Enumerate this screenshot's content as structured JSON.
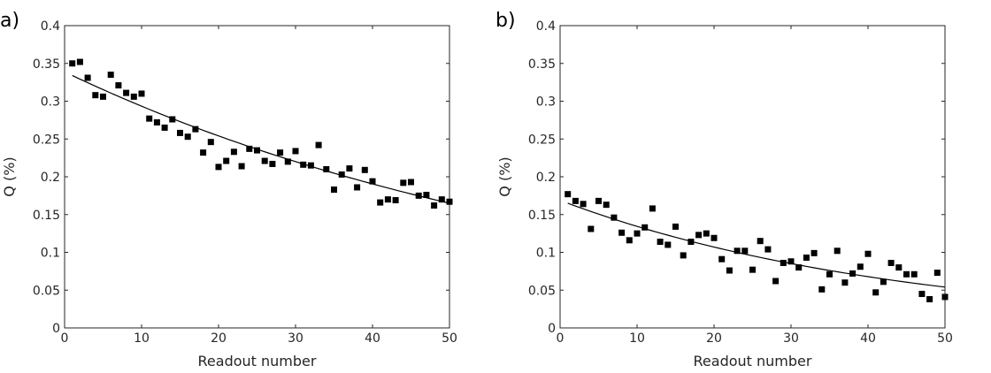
{
  "chart_data": [
    {
      "type": "scatter",
      "panel_label": "a)",
      "xlabel": "Readout number",
      "ylabel": "Q (%)",
      "xlim": [
        0,
        50
      ],
      "ylim": [
        0,
        0.4
      ],
      "xticks": [
        0,
        10,
        20,
        30,
        40,
        50
      ],
      "yticks": [
        0,
        0.05,
        0.1,
        0.15,
        0.2,
        0.25,
        0.3,
        0.35,
        0.4
      ],
      "xtick_labels": [
        "0",
        "10",
        "20",
        "30",
        "40",
        "50"
      ],
      "ytick_labels": [
        "0",
        "0.05",
        "0.1",
        "0.15",
        "0.2",
        "0.25",
        "0.3",
        "0.35",
        "0.4"
      ],
      "grid": false,
      "series": [
        {
          "marker": "square",
          "color": "#000000",
          "x": [
            1,
            2,
            3,
            4,
            5,
            6,
            7,
            8,
            9,
            10,
            11,
            12,
            13,
            14,
            15,
            16,
            17,
            18,
            19,
            20,
            21,
            22,
            23,
            24,
            25,
            26,
            27,
            28,
            29,
            30,
            31,
            32,
            33,
            34,
            35,
            36,
            37,
            38,
            39,
            40,
            41,
            42,
            43,
            44,
            45,
            46,
            47,
            48,
            49,
            50
          ],
          "y": [
            0.35,
            0.352,
            0.331,
            0.308,
            0.306,
            0.335,
            0.321,
            0.311,
            0.306,
            0.31,
            0.277,
            0.272,
            0.265,
            0.276,
            0.258,
            0.253,
            0.263,
            0.232,
            0.246,
            0.213,
            0.221,
            0.233,
            0.214,
            0.237,
            0.235,
            0.221,
            0.217,
            0.232,
            0.22,
            0.234,
            0.216,
            0.215,
            0.242,
            0.21,
            0.183,
            0.203,
            0.211,
            0.186,
            0.209,
            0.194,
            0.166,
            0.17,
            0.169,
            0.192,
            0.193,
            0.175,
            0.176,
            0.162,
            0.17,
            0.167
          ]
        }
      ],
      "fit": {
        "color": "#000000",
        "x": [
          1,
          50
        ],
        "y": [
          0.334,
          0.165
        ]
      }
    },
    {
      "type": "scatter",
      "panel_label": "b)",
      "xlabel": "Readout number",
      "ylabel": "Q (%)",
      "xlim": [
        0,
        50
      ],
      "ylim": [
        0,
        0.4
      ],
      "xticks": [
        0,
        10,
        20,
        30,
        40,
        50
      ],
      "yticks": [
        0,
        0.05,
        0.1,
        0.15,
        0.2,
        0.25,
        0.3,
        0.35,
        0.4
      ],
      "xtick_labels": [
        "0",
        "10",
        "20",
        "30",
        "40",
        "50"
      ],
      "ytick_labels": [
        "0",
        "0.05",
        "0.1",
        "0.15",
        "0.2",
        "0.25",
        "0.3",
        "0.35",
        "0.4"
      ],
      "grid": false,
      "series": [
        {
          "marker": "square",
          "color": "#000000",
          "x": [
            1,
            2,
            3,
            4,
            5,
            6,
            7,
            8,
            9,
            10,
            11,
            12,
            13,
            14,
            15,
            16,
            17,
            18,
            19,
            20,
            21,
            22,
            23,
            24,
            25,
            26,
            27,
            28,
            29,
            30,
            31,
            32,
            33,
            34,
            35,
            36,
            37,
            38,
            39,
            40,
            41,
            42,
            43,
            44,
            45,
            46,
            47,
            48,
            49,
            50
          ],
          "y": [
            0.177,
            0.168,
            0.164,
            0.131,
            0.168,
            0.163,
            0.146,
            0.126,
            0.116,
            0.125,
            0.133,
            0.158,
            0.114,
            0.11,
            0.134,
            0.096,
            0.114,
            0.123,
            0.125,
            0.119,
            0.091,
            0.076,
            0.102,
            0.102,
            0.077,
            0.115,
            0.104,
            0.062,
            0.086,
            0.088,
            0.08,
            0.093,
            0.099,
            0.051,
            0.071,
            0.102,
            0.06,
            0.072,
            0.081,
            0.098,
            0.047,
            0.061,
            0.086,
            0.08,
            0.071,
            0.071,
            0.045,
            0.038,
            0.073,
            0.041
          ]
        }
      ],
      "fit": {
        "color": "#000000",
        "x": [
          1,
          50
        ],
        "y": [
          0.165,
          0.054
        ]
      }
    }
  ]
}
